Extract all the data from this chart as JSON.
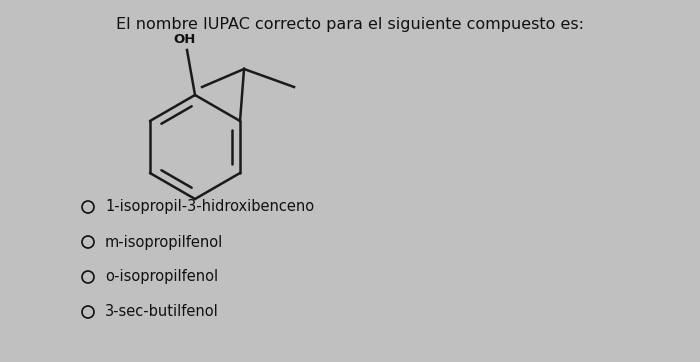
{
  "title": "El nombre IUPAC correcto para el siguiente compuesto es:",
  "title_fontsize": 11.5,
  "title_color": "#111111",
  "background_color": "#c0c0c0",
  "options": [
    "1-isopropil-3-hidroxibenceno",
    "m-isopropilfenol",
    "o-isopropilfenol",
    "3-sec-butilfenol"
  ],
  "option_fontsize": 10.5,
  "option_color": "#111111",
  "circle_color": "#111111"
}
